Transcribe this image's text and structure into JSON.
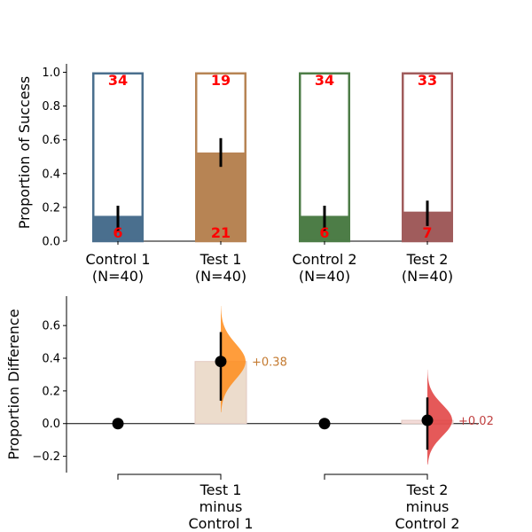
{
  "chart_data": [
    {
      "type": "bar",
      "ylabel": "Proportion of Success",
      "ylim": [
        0,
        1.05
      ],
      "yticks": [
        "0.0",
        "0.2",
        "0.4",
        "0.6",
        "0.8",
        "1.0"
      ],
      "groups": [
        {
          "name": "Control 1",
          "n_label": "(N=40)",
          "proportion": 0.15,
          "success": "6",
          "failure": "34",
          "ci": [
            0.06,
            0.21
          ],
          "color": "#4a6f8e"
        },
        {
          "name": "Test 1",
          "n_label": "(N=40)",
          "proportion": 0.525,
          "success": "21",
          "failure": "19",
          "ci": [
            0.44,
            0.61
          ],
          "color": "#b78454"
        },
        {
          "name": "Control 2",
          "n_label": "(N=40)",
          "proportion": 0.15,
          "success": "6",
          "failure": "34",
          "ci": [
            0.06,
            0.21
          ],
          "color": "#4d7d47"
        },
        {
          "name": "Test 2",
          "n_label": "(N=40)",
          "proportion": 0.175,
          "success": "7",
          "failure": "33",
          "ci": [
            0.09,
            0.24
          ],
          "color": "#a05c5c"
        }
      ],
      "pairs": [
        [
          0,
          1
        ],
        [
          2,
          3
        ]
      ]
    },
    {
      "type": "scatter",
      "ylabel": "Proportion Difference",
      "ylim": [
        -0.3,
        0.78
      ],
      "yticks": [
        "−0.2",
        "0.0",
        "0.2",
        "0.4",
        "0.6"
      ],
      "comparisons": [
        {
          "label_lines": [
            "Test 1",
            "minus",
            "Control 1"
          ],
          "delta": 0.38,
          "delta_text": "+0.38",
          "ci": [
            0.14,
            0.56
          ],
          "dist_range": [
            0.07,
            0.72
          ],
          "dist_color": "#ff8c1a",
          "label_color": "#c47a30",
          "bar_color": "#ecdccc"
        },
        {
          "label_lines": [
            "Test 2",
            "minus",
            "Control 2"
          ],
          "delta": 0.02,
          "delta_text": "+0.02",
          "ci": [
            -0.16,
            0.16
          ],
          "dist_range": [
            -0.25,
            0.33
          ],
          "dist_color": "#e03c3c",
          "label_color": "#c04040",
          "bar_color": "#f3dcd9"
        }
      ]
    }
  ]
}
